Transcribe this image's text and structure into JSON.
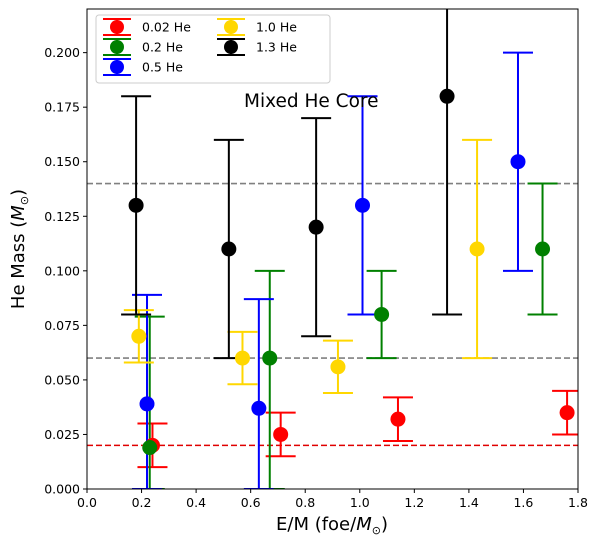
{
  "chart_data": {
    "type": "scatter",
    "title": "",
    "xlabel": "E/M (foe/",
    "xlabel_sub": "M",
    "xlabel_sub_sym": "⊙",
    "xlabel_tail": ")",
    "ylabel": "He Mass (",
    "ylabel_sub": "M",
    "ylabel_sub_sym": "⊙",
    "ylabel_tail": ")",
    "xlim": [
      0.0,
      1.8
    ],
    "ylim": [
      0.0,
      0.22
    ],
    "xticks": [
      "0.0",
      "0.2",
      "0.4",
      "0.6",
      "0.8",
      "1.0",
      "1.2",
      "1.4",
      "1.6",
      "1.8"
    ],
    "yticks": [
      "0.000",
      "0.025",
      "0.050",
      "0.075",
      "0.100",
      "0.125",
      "0.150",
      "0.175",
      "0.200"
    ],
    "grid": false,
    "legend_position": "top-left",
    "annotation": "Mixed He Core",
    "reference_lines": [
      {
        "y": 0.14,
        "color": "#808080",
        "style": "dashed"
      },
      {
        "y": 0.06,
        "color": "#808080",
        "style": "dashed"
      },
      {
        "y": 0.02,
        "color": "#e00000",
        "style": "dashed"
      }
    ],
    "series": [
      {
        "name": "0.02 He",
        "color": "#ff0000",
        "points": [
          {
            "x": 0.24,
            "y": 0.02,
            "lo": 0.01,
            "hi": 0.03
          },
          {
            "x": 0.71,
            "y": 0.025,
            "lo": 0.015,
            "hi": 0.035
          },
          {
            "x": 1.14,
            "y": 0.032,
            "lo": 0.022,
            "hi": 0.042
          },
          {
            "x": 1.76,
            "y": 0.035,
            "lo": 0.025,
            "hi": 0.045
          }
        ]
      },
      {
        "name": "0.2 He",
        "color": "#008000",
        "points": [
          {
            "x": 0.23,
            "y": 0.019,
            "lo": 0.0,
            "hi": 0.079
          },
          {
            "x": 0.67,
            "y": 0.06,
            "lo": 0.0,
            "hi": 0.1
          },
          {
            "x": 1.08,
            "y": 0.08,
            "lo": 0.06,
            "hi": 0.1
          },
          {
            "x": 1.67,
            "y": 0.11,
            "lo": 0.08,
            "hi": 0.14
          }
        ]
      },
      {
        "name": "0.5 He",
        "color": "#0000ff",
        "points": [
          {
            "x": 0.22,
            "y": 0.039,
            "lo": 0.0,
            "hi": 0.089
          },
          {
            "x": 0.63,
            "y": 0.037,
            "lo": 0.0,
            "hi": 0.087
          },
          {
            "x": 1.01,
            "y": 0.13,
            "lo": 0.08,
            "hi": 0.18
          },
          {
            "x": 1.58,
            "y": 0.15,
            "lo": 0.1,
            "hi": 0.2
          }
        ]
      },
      {
        "name": "1.0 He",
        "color": "#ffd700",
        "points": [
          {
            "x": 0.19,
            "y": 0.07,
            "lo": 0.058,
            "hi": 0.082
          },
          {
            "x": 0.57,
            "y": 0.06,
            "lo": 0.048,
            "hi": 0.072
          },
          {
            "x": 0.92,
            "y": 0.056,
            "lo": 0.044,
            "hi": 0.068
          },
          {
            "x": 1.43,
            "y": 0.11,
            "lo": 0.06,
            "hi": 0.16
          }
        ]
      },
      {
        "name": "1.3 He",
        "color": "#000000",
        "points": [
          {
            "x": 0.18,
            "y": 0.13,
            "lo": 0.08,
            "hi": 0.18
          },
          {
            "x": 0.52,
            "y": 0.11,
            "lo": 0.06,
            "hi": 0.16
          },
          {
            "x": 0.84,
            "y": 0.12,
            "lo": 0.07,
            "hi": 0.17
          },
          {
            "x": 1.32,
            "y": 0.18,
            "lo": 0.08,
            "hi": 0.28
          }
        ]
      }
    ]
  }
}
